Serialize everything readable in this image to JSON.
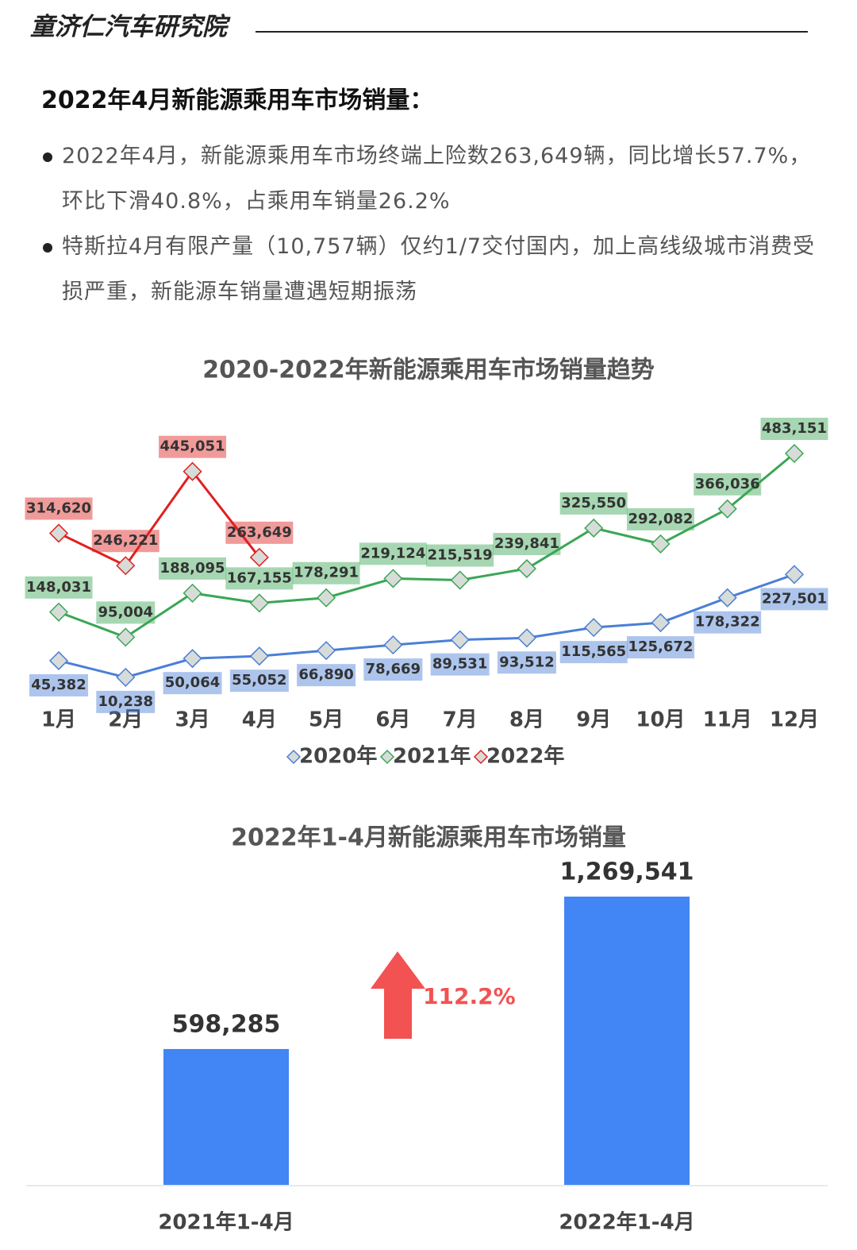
{
  "header": {
    "brand": "童济仁汽车研究院"
  },
  "heading": "2022年4月新能源乘用车市场销量：",
  "bullets": [
    "2022年4月，新能源乘用车市场终端上险数263,649辆，同比增长57.7%，环比下滑40.8%，占乘用车销量26.2%",
    "特斯拉4月有限产量（10,757辆）仅约1/7交付国内，加上高线级城市消费受损严重，新能源车销量遭遇短期振荡"
  ],
  "chart_data": [
    {
      "type": "line",
      "title": "2020-2022年新能源乘用车市场销量趋势",
      "categories": [
        "1月",
        "2月",
        "3月",
        "4月",
        "5月",
        "6月",
        "7月",
        "8月",
        "9月",
        "10月",
        "11月",
        "12月"
      ],
      "series": [
        {
          "name": "2020年",
          "color": "#4a7fd6",
          "values": [
            45382,
            10238,
            50064,
            55052,
            66890,
            78669,
            89531,
            93512,
            115565,
            125672,
            178322,
            227501
          ],
          "value_labels": [
            "45,382",
            "10,238",
            "50,064",
            "55,052",
            "66,890",
            "78,669",
            "89,531",
            "93,512",
            "115,565",
            "125,672",
            "178,322",
            "227,501"
          ]
        },
        {
          "name": "2021年",
          "color": "#3aa655",
          "values": [
            148031,
            95004,
            188095,
            167155,
            178291,
            219124,
            215519,
            239841,
            325550,
            292082,
            366036,
            483151
          ],
          "value_labels": [
            "148,031",
            "95,004",
            "188,095",
            "167,155",
            "178,291",
            "219,124",
            "215,519",
            "239,841",
            "325,550",
            "292,082",
            "366,036",
            "483,151"
          ]
        },
        {
          "name": "2022年",
          "color": "#e02020",
          "values": [
            314620,
            246221,
            445051,
            263649,
            null,
            null,
            null,
            null,
            null,
            null,
            null,
            null
          ],
          "value_labels": [
            "314,620",
            "246,221",
            "445,051",
            "263,649",
            null,
            null,
            null,
            null,
            null,
            null,
            null,
            null
          ]
        }
      ],
      "legend": "bottom"
    },
    {
      "type": "bar",
      "title": "2022年1-4月新能源乘用车市场销量",
      "categories": [
        "2021年1-4月",
        "2022年1-4月"
      ],
      "values": [
        598285,
        1269541
      ],
      "value_labels": [
        "598,285",
        "1,269,541"
      ],
      "color": "#4285f4",
      "annotation": "112.2%"
    }
  ]
}
